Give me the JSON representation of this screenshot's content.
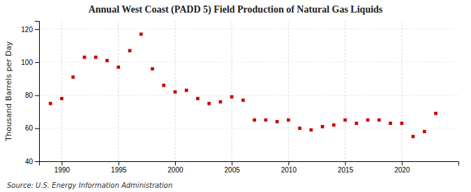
{
  "chart_data": {
    "type": "scatter",
    "title": "Annual West Coast (PADD 5) Field Production of Natural Gas Liquids",
    "y_label": "Thousand Barrels per Day",
    "annotations": [
      "Source: U.S. Energy Information Administration"
    ],
    "x": [
      1989,
      1990,
      1991,
      1992,
      1993,
      1994,
      1995,
      1996,
      1997,
      1998,
      1999,
      2000,
      2001,
      2002,
      2003,
      2004,
      2005,
      2006,
      2007,
      2008,
      2009,
      2010,
      2011,
      2012,
      2013,
      2014,
      2015,
      2016,
      2017,
      2018,
      2019,
      2020,
      2021,
      2022,
      2023
    ],
    "values": [
      75,
      78,
      91,
      103,
      103,
      101,
      97,
      107,
      117,
      96,
      86,
      82,
      83,
      78,
      75,
      76,
      79,
      77,
      65,
      65,
      64,
      65,
      60,
      59,
      61,
      62,
      65,
      63,
      65,
      65,
      63,
      63,
      55,
      58,
      69
    ],
    "color": "#cc0000",
    "marker": "square",
    "xlim": [
      1988.0,
      2025.0
    ],
    "ylim": [
      40,
      125
    ],
    "xticks": [
      1990,
      1995,
      2000,
      2005,
      2010,
      2015,
      2020
    ],
    "yticks": [
      40,
      60,
      80,
      100,
      120
    ],
    "grid": true
  }
}
